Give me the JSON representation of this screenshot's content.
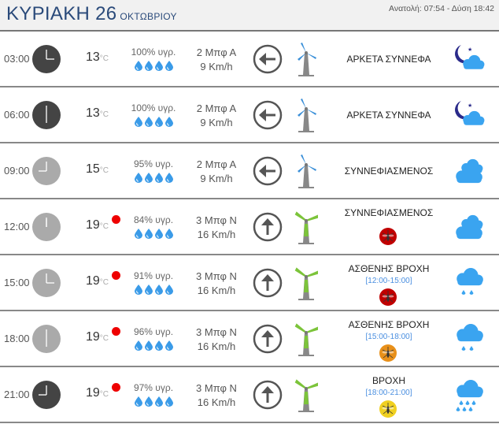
{
  "header": {
    "day": "ΚΥΡΙΑΚΗ 26",
    "month": "ΟΚΤΩΒΡΙΟΥ",
    "sun": "Ανατολή: 07:54  - Δύση 18:42"
  },
  "colors": {
    "accent": "#2a4a7a",
    "drop": "#3a9be8",
    "cloud": "#3aa4f0",
    "moon": "#2a2a8a",
    "alert": "#e00000"
  },
  "rows": [
    {
      "time": "03:00",
      "clock": "night",
      "temp": "13",
      "unit": "°C",
      "alert": false,
      "humidity": "100% υγρ.",
      "drops": 4,
      "beaufort": "2 Μπφ Α",
      "speed": "9 Km/h",
      "direction": "west",
      "blade_color": "#3a8fd8",
      "desc": "ΑΡΚΕΤΑ ΣΥΝΝΕΦΑ",
      "range": "",
      "mosquito": "",
      "icon": "moon-cloud-icon"
    },
    {
      "time": "06:00",
      "clock": "night",
      "temp": "13",
      "unit": "°C",
      "alert": false,
      "humidity": "100% υγρ.",
      "drops": 4,
      "beaufort": "2 Μπφ Α",
      "speed": "9 Km/h",
      "direction": "west",
      "blade_color": "#3a8fd8",
      "desc": "ΑΡΚΕΤΑ ΣΥΝΝΕΦΑ",
      "range": "",
      "mosquito": "",
      "icon": "moon-cloud-icon"
    },
    {
      "time": "09:00",
      "clock": "day",
      "temp": "15",
      "unit": "°C",
      "alert": false,
      "humidity": "95% υγρ.",
      "drops": 4,
      "beaufort": "2 Μπφ Α",
      "speed": "9 Km/h",
      "direction": "west",
      "blade_color": "#3a8fd8",
      "desc": "ΣΥΝΝΕΦΙΑΣΜΕΝΟΣ",
      "range": "",
      "mosquito": "",
      "icon": "clouds-icon"
    },
    {
      "time": "12:00",
      "clock": "day",
      "temp": "19",
      "unit": "°C",
      "alert": true,
      "humidity": "84% υγρ.",
      "drops": 4,
      "beaufort": "3 Μπφ Ν",
      "speed": "16 Km/h",
      "direction": "south",
      "blade_color": "#7cc43a",
      "desc": "ΣΥΝΝΕΦΙΑΣΜΕΝΟΣ",
      "range": "",
      "mosquito": "#c00000",
      "icon": "clouds-icon"
    },
    {
      "time": "15:00",
      "clock": "day",
      "temp": "19",
      "unit": "°C",
      "alert": true,
      "humidity": "91% υγρ.",
      "drops": 4,
      "beaufort": "3 Μπφ Ν",
      "speed": "16 Km/h",
      "direction": "south",
      "blade_color": "#7cc43a",
      "desc": "ΑΣΘΕΝΗΣ ΒΡΟΧΗ",
      "range": "[12:00-15:00]",
      "mosquito": "#c00000",
      "icon": "light-rain-icon"
    },
    {
      "time": "18:00",
      "clock": "day",
      "temp": "19",
      "unit": "°C",
      "alert": true,
      "humidity": "96% υγρ.",
      "drops": 4,
      "beaufort": "3 Μπφ Ν",
      "speed": "16 Km/h",
      "direction": "south",
      "blade_color": "#7cc43a",
      "desc": "ΑΣΘΕΝΗΣ ΒΡΟΧΗ",
      "range": "[15:00-18:00]",
      "mosquito": "#e8901a",
      "icon": "light-rain-icon"
    },
    {
      "time": "21:00",
      "clock": "night",
      "temp": "19",
      "unit": "°C",
      "alert": true,
      "humidity": "97% υγρ.",
      "drops": 4,
      "beaufort": "3 Μπφ Ν",
      "speed": "16 Km/h",
      "direction": "south",
      "blade_color": "#7cc43a",
      "desc": "ΒΡΟΧΗ",
      "range": "[18:00-21:00]",
      "mosquito": "#f0d020",
      "icon": "rain-icon"
    }
  ]
}
